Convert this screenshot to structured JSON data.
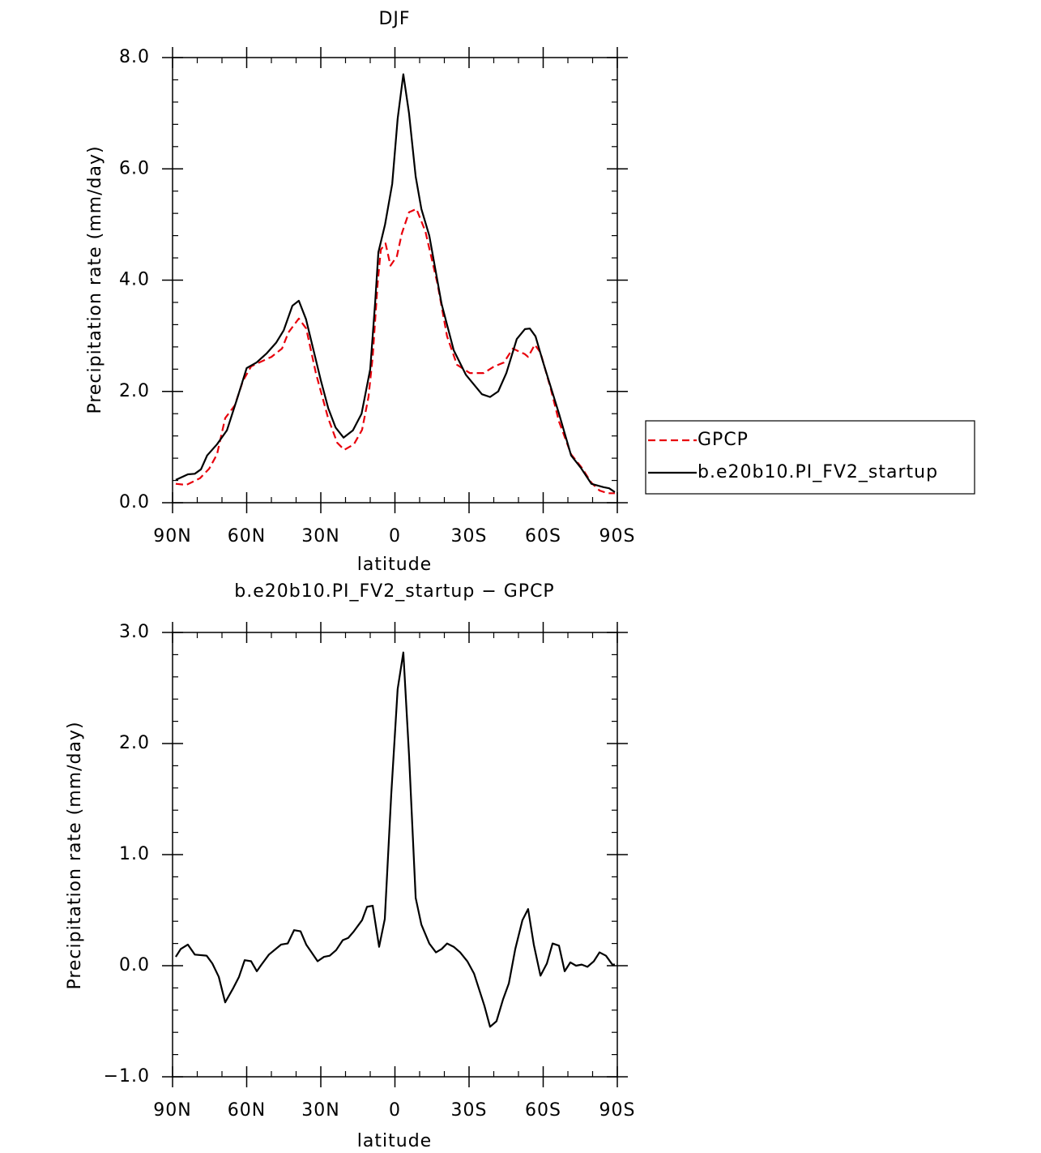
{
  "chart_data": [
    {
      "type": "line",
      "title": "DJF",
      "xlabel": "latitude",
      "ylabel": "Precipitation rate (mm/day)",
      "xlim": [
        90,
        -90
      ],
      "ylim": [
        0,
        8
      ],
      "xticks": [
        {
          "value": 90,
          "label": "90N"
        },
        {
          "value": 60,
          "label": "60N"
        },
        {
          "value": 30,
          "label": "30N"
        },
        0,
        {
          "value": -30,
          "label": "30S"
        },
        {
          "value": -60,
          "label": "60S"
        },
        {
          "value": -90,
          "label": "90S"
        }
      ],
      "yticks": [
        {
          "value": 0,
          "label": "0.0"
        },
        {
          "value": 2,
          "label": "2.0"
        },
        {
          "value": 4,
          "label": "4.0"
        },
        {
          "value": 6,
          "label": "6.0"
        },
        {
          "value": 8,
          "label": "8.0"
        }
      ],
      "legend": "right",
      "series": [
        {
          "name": "GPCP",
          "color": "#e8000b",
          "dash": true,
          "x": [
            88.7,
            84.4,
            78.9,
            75.2,
            72,
            68.7,
            64.8,
            61.5,
            58.2,
            54.9,
            50,
            45.7,
            43.1,
            38.9,
            35.9,
            32,
            27.1,
            23.4,
            20.5,
            16.6,
            13.3,
            10.7,
            9,
            7,
            5.7,
            3.8,
            1.8,
            -0.8,
            -2.8,
            -5.7,
            -8.7,
            -12.3,
            -17.2,
            -21.1,
            -25.1,
            -30.3,
            -35.9,
            -40.2,
            -44.1,
            -47.7,
            -52.6,
            -53.9,
            -56.6,
            -58.9,
            -63.1,
            -66.4,
            -71.3,
            -75.6,
            -79.5,
            -82.8,
            -86.1,
            -89
          ],
          "values": [
            0.34,
            0.32,
            0.44,
            0.61,
            0.87,
            1.52,
            1.75,
            2.19,
            2.45,
            2.52,
            2.62,
            2.77,
            3.06,
            3.31,
            3.13,
            2.33,
            1.53,
            1.08,
            0.95,
            1.05,
            1.31,
            1.9,
            2.62,
            3.94,
            4.55,
            4.66,
            4.26,
            4.43,
            4.84,
            5.22,
            5.28,
            4.88,
            3.94,
            2.99,
            2.48,
            2.33,
            2.33,
            2.45,
            2.52,
            2.77,
            2.67,
            2.62,
            2.84,
            2.7,
            2.04,
            1.46,
            0.87,
            0.63,
            0.36,
            0.22,
            0.17,
            0.17
          ]
        },
        {
          "name": "b.e20b10.PI_FV2_startup",
          "color": "#000000",
          "dash": false,
          "x": [
            88.7,
            83.8,
            81,
            78.5,
            76,
            72,
            68,
            64,
            60,
            56,
            52,
            48,
            45,
            41.5,
            38.9,
            36,
            33,
            30,
            27,
            24,
            20.8,
            17,
            13.5,
            10,
            8,
            6.7,
            4,
            1.1,
            -1.1,
            -3.4,
            -5.7,
            -8.4,
            -10.7,
            -13.9,
            -18.9,
            -23.8,
            -28.7,
            -35.2,
            -38.5,
            -41.8,
            -45.1,
            -49.3,
            -52.6,
            -54.6,
            -56.9,
            -59.8,
            -66.4,
            -71.3,
            -75.2,
            -79.5,
            -84.4,
            -86.7,
            -89
          ],
          "values": [
            0.41,
            0.51,
            0.52,
            0.6,
            0.85,
            1.05,
            1.3,
            1.85,
            2.42,
            2.52,
            2.68,
            2.88,
            3.1,
            3.54,
            3.63,
            3.3,
            2.75,
            2.2,
            1.7,
            1.35,
            1.17,
            1.3,
            1.6,
            2.4,
            3.6,
            4.5,
            5.0,
            5.73,
            6.9,
            7.7,
            7.0,
            5.86,
            5.28,
            4.8,
            3.57,
            2.74,
            2.3,
            1.95,
            1.9,
            2.0,
            2.33,
            2.94,
            3.12,
            3.13,
            2.99,
            2.55,
            1.6,
            0.85,
            0.63,
            0.34,
            0.28,
            0.26,
            0.19
          ]
        }
      ]
    },
    {
      "type": "line",
      "title": "b.e20b10.PI_FV2_startup − GPCP",
      "xlabel": "latitude",
      "ylabel": "Precipitation rate (mm/day)",
      "xlim": [
        90,
        -90
      ],
      "ylim": [
        -1,
        3
      ],
      "xticks": [
        {
          "value": 90,
          "label": "90N"
        },
        {
          "value": 60,
          "label": "60N"
        },
        {
          "value": 30,
          "label": "30N"
        },
        0,
        {
          "value": -30,
          "label": "30S"
        },
        {
          "value": -60,
          "label": "60S"
        },
        {
          "value": -90,
          "label": "90S"
        }
      ],
      "yticks": [
        {
          "value": -1,
          "label": "−1.0"
        },
        {
          "value": 0,
          "label": "0.0"
        },
        {
          "value": 1,
          "label": "1.0"
        },
        {
          "value": 2,
          "label": "2.0"
        },
        {
          "value": 3,
          "label": "3.0"
        }
      ],
      "series": [
        {
          "color": "#000000",
          "dash": false,
          "x": [
            88.7,
            86.7,
            83.8,
            81,
            76.2,
            73.9,
            71.3,
            68.7,
            65.4,
            63.1,
            60.8,
            58.2,
            55.9,
            54,
            51,
            46.1,
            43.4,
            40.8,
            38.2,
            35.9,
            31.3,
            28.7,
            26.4,
            23.8,
            21.1,
            18.9,
            16.6,
            13.3,
            11.3,
            9,
            6.4,
            4.1,
            1.5,
            -1.1,
            -3.4,
            -5.7,
            -8.4,
            -10.7,
            -13.9,
            -16.6,
            -18.9,
            -21.1,
            -23.8,
            -26.4,
            -29.3,
            -32,
            -36.2,
            -38.5,
            -41.1,
            -43.8,
            -46.1,
            -48.7,
            -51.6,
            -53.9,
            -56.2,
            -58.9,
            -61.5,
            -63.8,
            -66.4,
            -68.7,
            -71,
            -73.3,
            -75.6,
            -77.9,
            -80.5,
            -82.8,
            -85.4,
            -88,
            -89
          ],
          "values": [
            0.08,
            0.15,
            0.19,
            0.1,
            0.09,
            0.02,
            -0.1,
            -0.33,
            -0.2,
            -0.1,
            0.05,
            0.04,
            -0.05,
            0.01,
            0.1,
            0.19,
            0.2,
            0.32,
            0.31,
            0.19,
            0.04,
            0.08,
            0.09,
            0.14,
            0.23,
            0.25,
            0.31,
            0.41,
            0.53,
            0.54,
            0.17,
            0.42,
            1.54,
            2.49,
            2.82,
            1.9,
            0.61,
            0.37,
            0.2,
            0.12,
            0.15,
            0.2,
            0.17,
            0.12,
            0.04,
            -0.07,
            -0.36,
            -0.55,
            -0.5,
            -0.3,
            -0.16,
            0.15,
            0.41,
            0.51,
            0.19,
            -0.09,
            0.02,
            0.2,
            0.18,
            -0.05,
            0.03,
            0,
            0.01,
            -0.01,
            0.04,
            0.12,
            0.09,
            0.01,
            0.01
          ]
        }
      ]
    }
  ]
}
